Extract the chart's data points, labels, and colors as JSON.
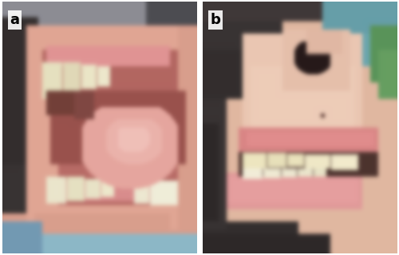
{
  "figure_width": 5.0,
  "figure_height": 3.19,
  "dpi": 100,
  "background_color": "#ffffff",
  "panel_a_label": "a",
  "panel_b_label": "b",
  "label_fontsize": 13,
  "label_color": "#000000",
  "label_bg": "#ffffff"
}
